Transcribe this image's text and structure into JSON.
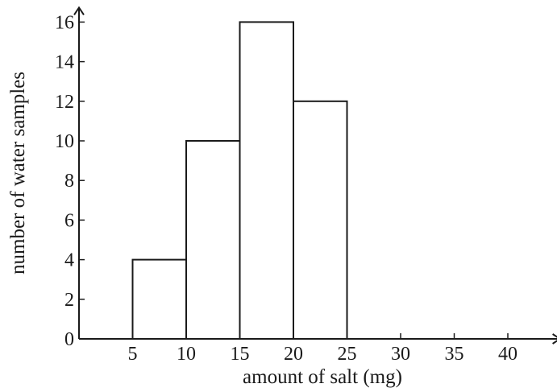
{
  "chart_data": {
    "type": "histogram",
    "xlabel": "amount of salt  (mg)",
    "ylabel": "number of water samples",
    "x_ticks": [
      5,
      10,
      15,
      20,
      25,
      30,
      35,
      40
    ],
    "y_ticks": [
      0,
      2,
      4,
      6,
      8,
      10,
      12,
      14,
      16
    ],
    "xlim": [
      0,
      42
    ],
    "ylim": [
      0,
      16
    ],
    "bins": [
      {
        "start": 5,
        "end": 10,
        "value": 4
      },
      {
        "start": 10,
        "end": 15,
        "value": 10
      },
      {
        "start": 15,
        "end": 20,
        "value": 16
      },
      {
        "start": 20,
        "end": 25,
        "value": 12
      }
    ],
    "grid": false,
    "legend": "none"
  }
}
